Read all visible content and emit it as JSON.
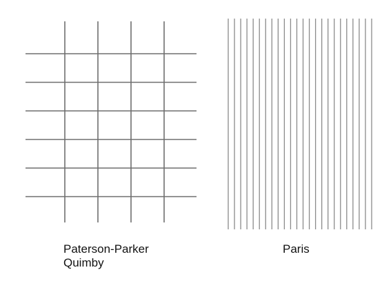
{
  "panels": [
    {
      "id": "paterson-parker-quimby",
      "label_lines": [
        "Paterson-Parker",
        "Quimby"
      ],
      "pattern": "square-grid",
      "vertical_line_count": 4,
      "horizontal_line_count": 6,
      "line_color": "#6e6e6e"
    },
    {
      "id": "paris",
      "label_lines": [
        "Paris"
      ],
      "pattern": "parallel-lines",
      "vertical_line_count": 24,
      "line_color": "#8a8a8a"
    }
  ]
}
